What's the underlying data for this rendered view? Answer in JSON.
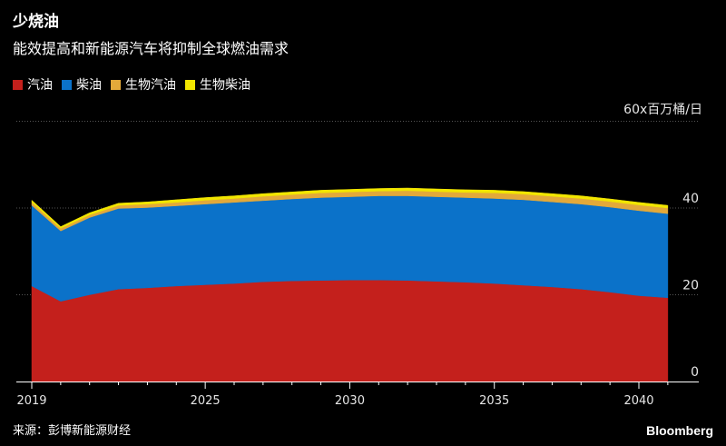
{
  "header": {
    "title": "少烧油",
    "subtitle": "能效提高和新能源汽车将抑制全球燃油需求"
  },
  "legend": [
    {
      "label": "汽油",
      "color": "#c4201c"
    },
    {
      "label": "柴油",
      "color": "#0b72c9"
    },
    {
      "label": "生物汽油",
      "color": "#e3a93a"
    },
    {
      "label": "生物柴油",
      "color": "#f2e600"
    }
  ],
  "unit_label": "60x百万桶/日",
  "footer": {
    "source": "来源：彭博新能源财经",
    "brand": "Bloomberg"
  },
  "colors": {
    "background": "#000000",
    "gridline": "#555555"
  },
  "chart_data": {
    "type": "area",
    "stacked": true,
    "x": [
      2019,
      2020,
      2021,
      2022,
      2023,
      2024,
      2025,
      2026,
      2027,
      2028,
      2029,
      2030,
      2031,
      2032,
      2033,
      2034,
      2035,
      2036,
      2037,
      2038,
      2039,
      2040,
      2041
    ],
    "series": [
      {
        "name": "汽油",
        "color": "#c4201c",
        "values": [
          22.0,
          18.5,
          20.0,
          21.3,
          21.6,
          22.0,
          22.3,
          22.6,
          23.0,
          23.2,
          23.3,
          23.4,
          23.4,
          23.3,
          23.1,
          22.9,
          22.6,
          22.2,
          21.8,
          21.3,
          20.6,
          19.8,
          19.3
        ]
      },
      {
        "name": "柴油",
        "color": "#0b72c9",
        "values": [
          18.6,
          16.2,
          17.8,
          18.6,
          18.5,
          18.5,
          18.6,
          18.7,
          18.7,
          18.9,
          19.1,
          19.2,
          19.4,
          19.5,
          19.5,
          19.5,
          19.6,
          19.7,
          19.6,
          19.6,
          19.6,
          19.6,
          19.4
        ]
      },
      {
        "name": "生物汽油",
        "color": "#e3a93a",
        "values": [
          0.7,
          0.6,
          0.6,
          0.7,
          0.8,
          0.8,
          0.9,
          0.9,
          1.0,
          1.0,
          1.1,
          1.1,
          1.1,
          1.2,
          1.2,
          1.2,
          1.3,
          1.3,
          1.3,
          1.3,
          1.3,
          1.3,
          1.3
        ]
      },
      {
        "name": "生物柴油",
        "color": "#f2e600",
        "values": [
          0.5,
          0.4,
          0.5,
          0.5,
          0.5,
          0.6,
          0.6,
          0.6,
          0.6,
          0.6,
          0.6,
          0.6,
          0.6,
          0.6,
          0.6,
          0.6,
          0.6,
          0.6,
          0.6,
          0.6,
          0.6,
          0.6,
          0.6
        ]
      }
    ],
    "ylim": [
      0,
      60
    ],
    "yticks": [
      0,
      20,
      40
    ],
    "xticks": [
      2019,
      2025,
      2030,
      2035,
      2040
    ],
    "grid": true
  }
}
